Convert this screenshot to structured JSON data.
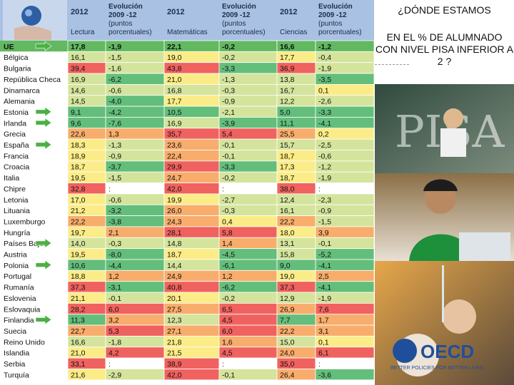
{
  "header": {
    "lectura": {
      "year": "2012",
      "evo": "Evolución 2009 -12 (puntos porcentuales)",
      "subject": "Lectura"
    },
    "matematicas": {
      "year": "2012",
      "evo": "Evolución 2009 -12 (puntos porcentuales)",
      "subject": "Matemáticas"
    },
    "ciencias": {
      "year": "2012",
      "evo": "Evolución 2009 -12 (puntos porcentuales)",
      "subject": "Ciencias"
    }
  },
  "ue_row": {
    "country": "UE",
    "values": [
      "17,8",
      "-1,9",
      "22,1",
      "-0,2",
      "16,6",
      "-1,2"
    ]
  },
  "rows": [
    {
      "country": "Bélgica",
      "values": [
        "16,1",
        "-1,5",
        "19,0",
        "-0,2",
        "17,7",
        "-0,4"
      ]
    },
    {
      "country": "Bulgaria",
      "values": [
        "39,4",
        "-1,6",
        "43,8",
        "-3,3",
        "36,9",
        "-1,9"
      ]
    },
    {
      "country": "República Checa",
      "values": [
        "16,9",
        "-6,2",
        "21,0",
        "-1,3",
        "13,8",
        "-3,5"
      ]
    },
    {
      "country": "Dinamarca",
      "values": [
        "14,6",
        "-0,6",
        "16,8",
        "-0,3",
        "16,7",
        "0,1"
      ]
    },
    {
      "country": "Alemania",
      "values": [
        "14,5",
        "-4,0",
        "17,7",
        "-0,9",
        "12,2",
        "-2,6"
      ]
    },
    {
      "country": "Estonia",
      "values": [
        "9,1",
        "-4,2",
        "10,5",
        "-2,1",
        "5,0",
        "-3,3"
      ]
    },
    {
      "country": "Irlanda",
      "values": [
        "9,6",
        "-7,6",
        "16,9",
        "-3,9",
        "11,1",
        "-4,1"
      ]
    },
    {
      "country": "Grecia",
      "values": [
        "22,6",
        "1,3",
        "35,7",
        "5,4",
        "25,5",
        "0,2"
      ]
    },
    {
      "country": "España",
      "values": [
        "18,3",
        "-1,3",
        "23,6",
        "-0,1",
        "15,7",
        "-2,5"
      ]
    },
    {
      "country": "Francia",
      "values": [
        "18,9",
        "-0,9",
        "22,4",
        "-0,1",
        "18,7",
        "-0,6"
      ]
    },
    {
      "country": "Croacia",
      "values": [
        "18,7",
        "-3,7",
        "29,9",
        "-3,3",
        "17,3",
        "-1,2"
      ]
    },
    {
      "country": "Italia",
      "values": [
        "19,5",
        "-1,5",
        "24,7",
        "-0,2",
        "18,7",
        "-1,9"
      ]
    },
    {
      "country": "Chipre",
      "values": [
        "32,8",
        ":",
        "42,0",
        ":",
        "38,0",
        ":"
      ]
    },
    {
      "country": "Letonia",
      "values": [
        "17,0",
        "-0,6",
        "19,9",
        "-2,7",
        "12,4",
        "-2,3"
      ]
    },
    {
      "country": "Lituania",
      "values": [
        "21,2",
        "-3,2",
        "26,0",
        "-0,3",
        "16,1",
        "-0,9"
      ]
    },
    {
      "country": "Luxemburgo",
      "values": [
        "22,2",
        "-3,8",
        "24,3",
        "0,4",
        "22,2",
        "-1,5"
      ]
    },
    {
      "country": "Hungría",
      "values": [
        "19,7",
        "2,1",
        "28,1",
        "5,8",
        "18,0",
        "3,9"
      ]
    },
    {
      "country": "Países Bajos",
      "values": [
        "14,0",
        "-0,3",
        "14,8",
        "1,4",
        "13,1",
        "-0,1"
      ]
    },
    {
      "country": "Austria",
      "values": [
        "19,5",
        "-8,0",
        "18,7",
        "-4,5",
        "15,8",
        "-5,2"
      ]
    },
    {
      "country": "Polonia",
      "values": [
        "10,6",
        "-4,4",
        "14,4",
        "-6,1",
        "9,0",
        "-4,1"
      ]
    },
    {
      "country": "Portugal",
      "values": [
        "18,8",
        "1,2",
        "24,9",
        "1,2",
        "19,0",
        "2,5"
      ]
    },
    {
      "country": "Rumanía",
      "values": [
        "37,3",
        "-3,1",
        "40,8",
        "-6,2",
        "37,3",
        "-4,1"
      ]
    },
    {
      "country": "Eslovenia",
      "values": [
        "21,1",
        "-0,1",
        "20,1",
        "-0,2",
        "12,9",
        "-1,9"
      ]
    },
    {
      "country": "Eslovaquia",
      "values": [
        "28,2",
        "6,0",
        "27,5",
        "6,5",
        "26,9",
        "7,6"
      ]
    },
    {
      "country": "Finlandia",
      "values": [
        "11,3",
        "3,2",
        "12,3",
        "4,5",
        "7,7",
        "1,7"
      ]
    },
    {
      "country": "Suecia",
      "values": [
        "22,7",
        "5,3",
        "27,1",
        "6,0",
        "22,2",
        "3,1"
      ]
    },
    {
      "country": "Reino Unido",
      "values": [
        "16,6",
        "-1,8",
        "21,8",
        "1,6",
        "15,0",
        "0,1"
      ]
    },
    {
      "country": "Islandia",
      "values": [
        "21,0",
        "4,2",
        "21,5",
        "4,5",
        "24,0",
        "6,1"
      ]
    },
    {
      "country": "Serbia",
      "values": [
        "33,1",
        ":",
        "38,9",
        ":",
        "35,0",
        ":"
      ]
    },
    {
      "country": "Turquía",
      "values": [
        "21,6",
        "-2,9",
        "42,0",
        "-0,1",
        "26,4",
        "-3,6"
      ]
    }
  ],
  "arrow_rows": [
    "UE",
    "Estonia",
    "Irlanda",
    "España",
    "Países Bajos",
    "Polonia",
    "Finlandia"
  ],
  "right": {
    "title": "¿DÓNDE ESTAMOS",
    "subtitle": "EN EL % DE ALUMNADO CON NIVEL PISA INFERIOR A 2 ?"
  },
  "photo": {
    "watermark": "PISA",
    "logo": "OECD",
    "logo_tagline": "BETTER POLICIES FOR BETTER LIVES"
  },
  "colors": {
    "header_blue": "#a9c1e3",
    "ue_green": "#62b960",
    "red": "#f0625f",
    "orange": "#f8ad6c",
    "yellow": "#fbec87",
    "lightgreen": "#d4e49c",
    "green": "#63be7b",
    "arrow": "#4cb043"
  },
  "icons": {
    "arrow": "arrow-right-icon",
    "globe": "globe-hand-icon"
  }
}
